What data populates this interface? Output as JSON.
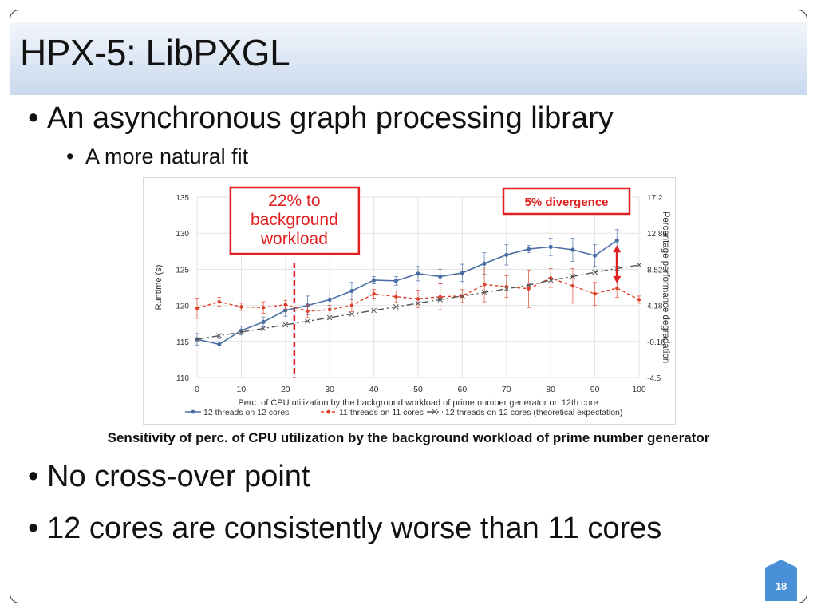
{
  "slide": {
    "title": "HPX-5: LibPXGL",
    "bullets": [
      "An asynchronous graph processing library",
      "No cross-over point",
      "12 cores are consistently worse than 11 cores"
    ],
    "sub_bullets": [
      "A more natural fit"
    ],
    "bullet_glyph": "•",
    "caption": "Sensitivity of perc. of CPU utilization by the background workload of prime number generator",
    "page_number": "18",
    "page_badge_color": "#4a90d9"
  },
  "chart_data": {
    "type": "line",
    "xlabel": "Perc. of CPU utilization by the background workload of prime number generator on 12th core",
    "ylabel": "Runtime (s)",
    "y2label": "Percentage performance degradation",
    "xlim": [
      0,
      100
    ],
    "ylim": [
      110,
      135
    ],
    "y2lim": [
      -4.5,
      17.2
    ],
    "x_ticks": [
      "0",
      "10",
      "20",
      "30",
      "40",
      "50",
      "60",
      "70",
      "80",
      "90",
      "100"
    ],
    "y_ticks": [
      "110",
      "115",
      "120",
      "125",
      "130",
      "135"
    ],
    "y2_ticks": [
      "-4.5",
      "-0.16",
      "4.18",
      "8.52",
      "12.86",
      "17.2"
    ],
    "grid": true,
    "legend_position": "bottom",
    "series": [
      {
        "name": "12 threads on 12 cores",
        "color": "#4a6fa5",
        "marker": "circle",
        "line": "solid",
        "x": [
          0,
          5,
          10,
          15,
          20,
          25,
          30,
          35,
          40,
          45,
          50,
          55,
          60,
          65,
          70,
          75,
          80,
          85,
          90,
          95
        ],
        "y": [
          115.3,
          114.6,
          116.5,
          117.7,
          119.3,
          120.0,
          120.8,
          122.0,
          123.5,
          123.4,
          124.4,
          124.0,
          124.5,
          125.8,
          127.0,
          127.8,
          128.1,
          127.7,
          126.9,
          129.0
        ],
        "err": [
          0.8,
          0.8,
          0.6,
          0.7,
          0.8,
          1.3,
          1.2,
          1.2,
          0.5,
          0.6,
          1.0,
          1.0,
          1.2,
          1.5,
          1.4,
          0.5,
          1.2,
          1.6,
          1.5,
          1.5
        ]
      },
      {
        "name": "11 threads on 11 cores",
        "color": "#e0402a",
        "marker": "circle",
        "line": "dashed",
        "x": [
          0,
          5,
          10,
          15,
          20,
          25,
          30,
          35,
          40,
          45,
          50,
          55,
          60,
          65,
          70,
          75,
          80,
          85,
          90,
          95,
          100
        ],
        "y": [
          119.6,
          120.5,
          119.8,
          119.7,
          120.1,
          119.2,
          119.4,
          120.0,
          121.6,
          121.2,
          120.9,
          121.2,
          121.3,
          122.9,
          122.6,
          122.3,
          123.8,
          122.7,
          121.6,
          122.4,
          120.8
        ],
        "err": [
          1.4,
          0.6,
          0.5,
          0.8,
          0.6,
          0.9,
          0.6,
          0.9,
          0.6,
          0.8,
          1.2,
          1.8,
          0.9,
          2.4,
          1.5,
          2.6,
          1.3,
          2.4,
          1.6,
          1.3,
          0.5
        ]
      },
      {
        "name": "12 threads on 12 cores (theoretical expectation)",
        "color": "#555555",
        "marker": "x",
        "line": "dashdot",
        "x": [
          0,
          5,
          10,
          15,
          20,
          25,
          30,
          35,
          40,
          45,
          50,
          55,
          60,
          65,
          70,
          75,
          80,
          85,
          90,
          95,
          100
        ],
        "y": [
          115.3,
          115.8,
          116.3,
          116.8,
          117.3,
          117.8,
          118.3,
          118.8,
          119.3,
          119.8,
          120.3,
          120.8,
          121.3,
          121.8,
          122.3,
          122.8,
          123.5,
          124.0,
          124.6,
          125.1,
          125.6
        ]
      }
    ],
    "annotations": [
      {
        "text": "22% to background workload",
        "lines": [
          "22% to",
          "background",
          "workload"
        ],
        "x": 22,
        "color": "#e02020"
      },
      {
        "text": "5% divergence",
        "x": 95,
        "color": "#e02020"
      }
    ]
  }
}
